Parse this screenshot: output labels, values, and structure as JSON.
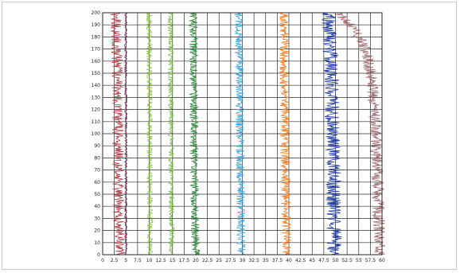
{
  "chart_data": {
    "type": "line",
    "title": "",
    "xlabel": "",
    "ylabel": "",
    "xlim": [
      0,
      60
    ],
    "ylim": [
      0,
      200
    ],
    "grid": true,
    "legend": "none",
    "x_ticks": [
      "0",
      "2.5",
      "5",
      "7.5",
      "10",
      "12.5",
      "15",
      "17.5",
      "20",
      "22.5",
      "25",
      "27.5",
      "30",
      "32.5",
      "35",
      "37.5",
      "40",
      "42.5",
      "45",
      "47.5",
      "50",
      "52.5",
      "55",
      "57.5",
      "60"
    ],
    "y_ticks": [
      "0",
      "10",
      "20",
      "30",
      "40",
      "50",
      "60",
      "70",
      "80",
      "90",
      "100",
      "110",
      "120",
      "130",
      "140",
      "150",
      "160",
      "170",
      "180",
      "190",
      "200"
    ],
    "series": [
      {
        "color": "#b0454e",
        "spread": 1.2,
        "points": [
          [
            3.6,
            0
          ],
          [
            3.4,
            40
          ],
          [
            3.3,
            80
          ],
          [
            3.2,
            120
          ],
          [
            3.1,
            150
          ],
          [
            3.0,
            175
          ],
          [
            2.9,
            190
          ],
          [
            2.8,
            200
          ]
        ]
      },
      {
        "color": "#7a2e59",
        "spread": 0.3,
        "points": [
          [
            5.0,
            0
          ],
          [
            5.0,
            100
          ],
          [
            5.0,
            200
          ]
        ]
      },
      {
        "color": "#8cc640",
        "spread": 0.6,
        "points": [
          [
            10.2,
            0
          ],
          [
            10.1,
            100
          ],
          [
            10.0,
            200
          ]
        ]
      },
      {
        "color": "#7cc24a",
        "spread": 0.6,
        "points": [
          [
            14.8,
            0
          ],
          [
            14.7,
            100
          ],
          [
            14.6,
            200
          ]
        ]
      },
      {
        "color": "#2f8a3a",
        "spread": 0.9,
        "points": [
          [
            20.0,
            0
          ],
          [
            19.7,
            60
          ],
          [
            19.6,
            120
          ],
          [
            19.5,
            200
          ]
        ]
      },
      {
        "color": "#3fa6dc",
        "spread": 0.9,
        "points": [
          [
            29.8,
            0
          ],
          [
            29.6,
            60
          ],
          [
            29.4,
            120
          ],
          [
            29.2,
            200
          ]
        ]
      },
      {
        "color": "#f07f23",
        "spread": 1.0,
        "points": [
          [
            39.5,
            0
          ],
          [
            39.3,
            60
          ],
          [
            39.1,
            120
          ],
          [
            38.9,
            200
          ]
        ]
      },
      {
        "color": "#223d9e",
        "spread": 1.6,
        "points": [
          [
            49.8,
            0
          ],
          [
            49.6,
            60
          ],
          [
            49.3,
            120
          ],
          [
            48.9,
            170
          ],
          [
            48.5,
            200
          ]
        ]
      },
      {
        "color": "#9e6e74",
        "spread": 1.3,
        "points": [
          [
            59.4,
            0
          ],
          [
            59.2,
            40
          ],
          [
            58.9,
            80
          ],
          [
            58.3,
            120
          ],
          [
            57.6,
            150
          ],
          [
            56.4,
            170
          ],
          [
            54.4,
            185
          ],
          [
            51.9,
            195
          ],
          [
            50.6,
            200
          ]
        ]
      }
    ]
  }
}
